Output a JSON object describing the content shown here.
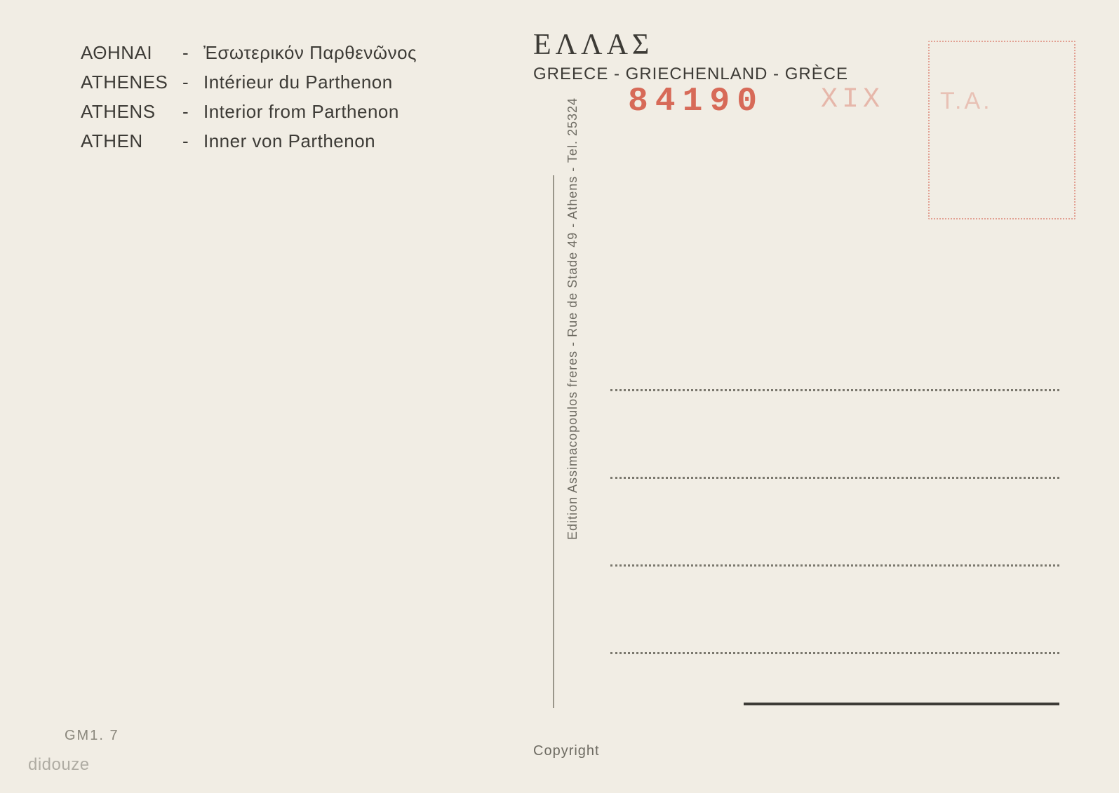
{
  "captions": [
    {
      "city": "ΑΘΗΝΑΙ",
      "sep": "-",
      "desc": "Ἐσωτερικόν Παρθενῶνος"
    },
    {
      "city": "ATHENES",
      "sep": "-",
      "desc": "Intérieur du Parthenon"
    },
    {
      "city": "ATHENS",
      "sep": "-",
      "desc": "Interior from Parthenon"
    },
    {
      "city": "ATHEN",
      "sep": "-",
      "desc": "Inner von Parthenon"
    }
  ],
  "header": {
    "ellas": "ΕΛΛΑΣ",
    "countries": "GREECE - GRIECHENLAND - GRÈCE"
  },
  "postmark": {
    "main": "84190",
    "faint": "ΧIX",
    "faint2": "Τ.Α."
  },
  "publisher": "Edition Assimacopoulos freres - Rue de Stade 49 - Athens - Tel. 25324",
  "ref": "GM1. 7",
  "copyright": "Copyright",
  "watermark": "didouze",
  "colors": {
    "bg": "#f1ede4",
    "ink": "#3d3b36",
    "ink_light": "#6e6b62",
    "stamp_red": "#d35440",
    "dotted": "#7b786e"
  }
}
